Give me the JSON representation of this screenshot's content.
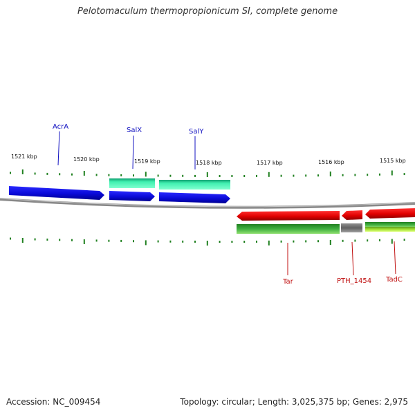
{
  "title": "Pelotomaculum thermopropionicum SI, complete genome",
  "footer": {
    "accession": "Accession: NC_009454",
    "summary": "Topology: circular; Length: 3,025,375 bp; Genes: 2,975"
  },
  "colors": {
    "forward_gene": "#1010e0",
    "reverse_gene": "#e01010",
    "forward_rna": "#30e0a0",
    "reverse_green": "#30a030",
    "reverse_lightgreen": "#a0e030",
    "pseudo": "#707070",
    "backbone": "#808080",
    "ticks": "#208020"
  },
  "scale_labels": [
    "1521 kbp",
    "1520 kbp",
    "1519 kbp",
    "1518 kbp",
    "1517 kbp",
    "1516 kbp",
    "1515 kbp"
  ],
  "gene_labels_forward": [
    "AcrA",
    "SalX",
    "SalY"
  ],
  "gene_labels_reverse": [
    "Tar",
    "PTH_1454",
    "TadC"
  ]
}
